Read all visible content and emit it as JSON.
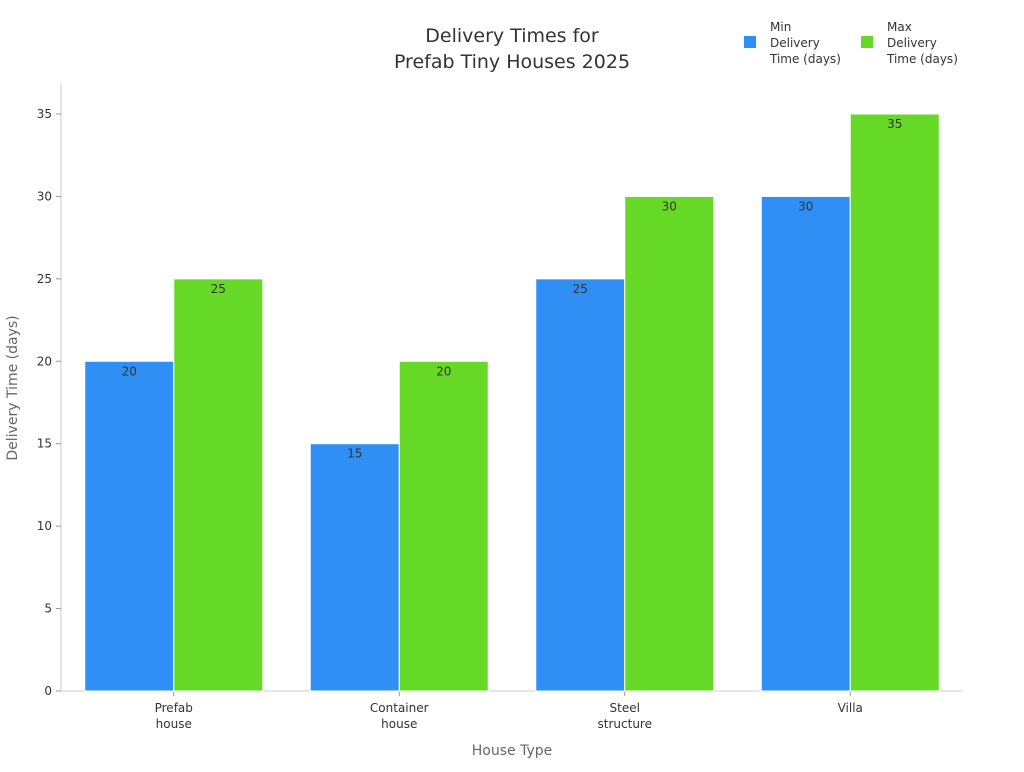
{
  "chart_data": {
    "type": "bar",
    "title_lines": [
      "Delivery Times for",
      "Prefab Tiny Houses 2025"
    ],
    "xlabel": "House Type",
    "ylabel": "Delivery Time (days)",
    "categories": [
      [
        "Prefab",
        "house"
      ],
      [
        "Container",
        "house"
      ],
      [
        "Steel",
        "structure"
      ],
      [
        "Villa"
      ]
    ],
    "ylim": [
      0,
      37
    ],
    "yticks": [
      0,
      5,
      10,
      15,
      20,
      25,
      30,
      35
    ],
    "grid": false,
    "legend_position": "top-right",
    "series": [
      {
        "name": "Min Delivery Time (days)",
        "legend_lines": [
          "Min",
          "Delivery",
          "Time (days)"
        ],
        "color": "#2f8ff5",
        "values": [
          20,
          15,
          25,
          30
        ]
      },
      {
        "name": "Max Delivery Time (days)",
        "legend_lines": [
          "Max",
          "Delivery",
          "Time (days)"
        ],
        "color": "#66d926",
        "values": [
          25,
          20,
          30,
          35
        ]
      }
    ]
  }
}
